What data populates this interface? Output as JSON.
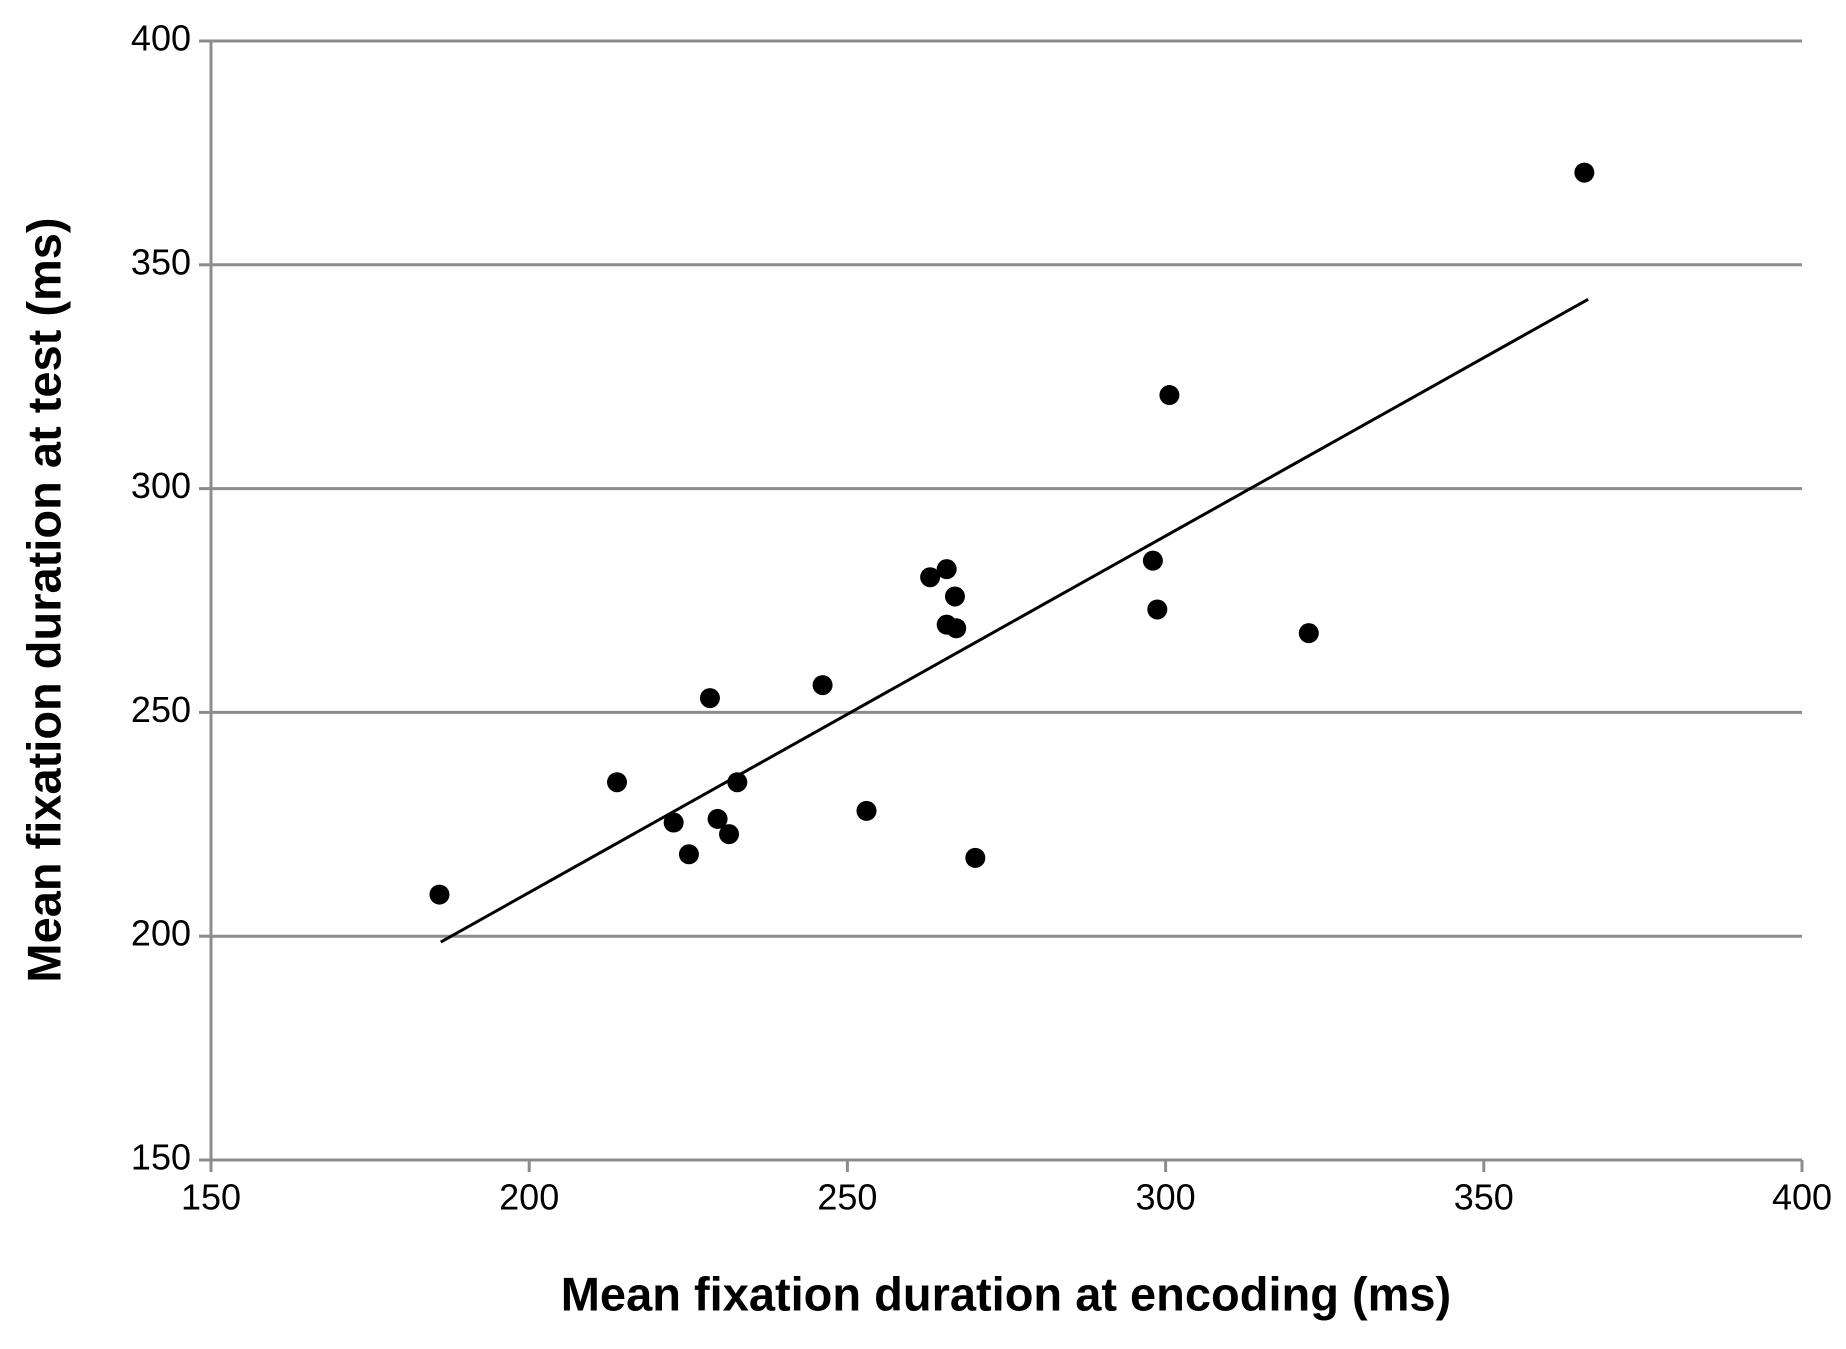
{
  "chart_data": {
    "type": "scatter",
    "x_label": "Mean fixation duration at encoding (ms)",
    "y_label": "Mean fixation duration at test (ms)",
    "x": [
      185.9,
      213.8,
      222.7,
      225.1,
      228.4,
      229.6,
      231.4,
      232.7,
      246.1,
      253.0,
      263.0,
      265.6,
      266.9,
      265.6,
      267.1,
      270.1,
      298.0,
      298.7,
      300.6,
      322.5,
      365.8
    ],
    "values": [
      209.3,
      234.4,
      225.4,
      218.3,
      253.2,
      226.2,
      222.8,
      234.4,
      256.1,
      228.0,
      280.2,
      282.0,
      275.9,
      269.6,
      268.8,
      217.5,
      283.9,
      273.0,
      320.9,
      267.7,
      370.6
    ],
    "color": "#000000",
    "trendline": {
      "x": [
        186.1,
        366.4
      ],
      "y": [
        198.7,
        342.3
      ],
      "color": "#000000"
    },
    "xlim": [
      150,
      400
    ],
    "xticks": [
      150,
      200,
      250,
      300,
      350,
      400
    ],
    "ylim": [
      150,
      400
    ],
    "yticks": [
      150,
      200,
      250,
      300,
      350,
      400
    ],
    "grid": true
  }
}
